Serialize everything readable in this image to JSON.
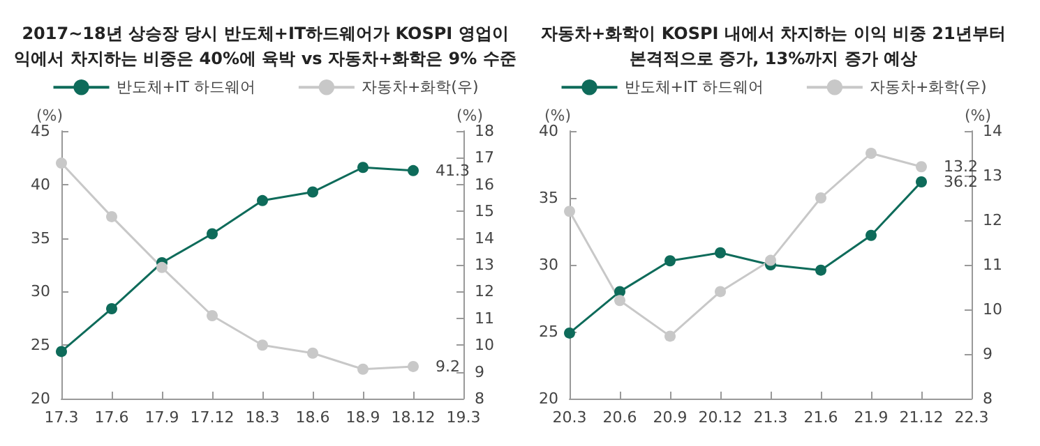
{
  "chart_data": [
    {
      "type": "line",
      "title": "2017~18년 상승장 당시 반도체+IT하드웨어가 KOSPI 영업이\n익에서 차지하는 비중은 40%에 육박 vs 자동차+화학은 9% 수준",
      "categories": [
        "17.3",
        "17.6",
        "17.9",
        "17.12",
        "18.3",
        "18.6",
        "18.9",
        "18.12",
        "19.3"
      ],
      "ylabel": "(%)",
      "y2label": "(%)",
      "ylim": [
        20,
        45
      ],
      "yticks": [
        20,
        25,
        30,
        35,
        40,
        45
      ],
      "y2lim": [
        8,
        18
      ],
      "y2ticks": [
        8,
        9,
        10,
        11,
        12,
        13,
        14,
        15,
        16,
        17,
        18
      ],
      "legend": "top",
      "grid": false,
      "marker": "circle",
      "series": [
        {
          "name": "반도체+IT 하드웨어",
          "color": "#0e6b5a",
          "values": [
            24.4,
            28.4,
            32.7,
            35.4,
            38.5,
            39.3,
            41.6,
            41.3,
            null
          ],
          "value_labels": [
            null,
            null,
            null,
            null,
            null,
            null,
            null,
            "41.3",
            null
          ]
        },
        {
          "name": "자동차+화학(우)",
          "color": "#c8c8c8",
          "axis": "y2",
          "values": [
            16.8,
            14.8,
            12.9,
            11.1,
            10.0,
            9.7,
            9.1,
            9.2,
            null
          ],
          "value_labels": [
            null,
            null,
            null,
            null,
            null,
            null,
            null,
            "9.2",
            null
          ]
        }
      ]
    },
    {
      "type": "line",
      "title": "자동차+화학이 KOSPI 내에서 차지하는 이익 비중 21년부터\n본격적으로 증가, 13%까지 증가 예상",
      "categories": [
        "20.3",
        "20.6",
        "20.9",
        "20.12",
        "21.3",
        "21.6",
        "21.9",
        "21.12",
        "22.3"
      ],
      "ylabel": "(%)",
      "y2label": "(%)",
      "ylim": [
        20,
        40
      ],
      "yticks": [
        20,
        25,
        30,
        35,
        40
      ],
      "y2lim": [
        8,
        14
      ],
      "y2ticks": [
        8,
        9,
        10,
        11,
        12,
        13,
        14
      ],
      "legend": "top",
      "grid": false,
      "marker": "circle",
      "series": [
        {
          "name": "반도체+IT 하드웨어",
          "color": "#0e6b5a",
          "values": [
            24.9,
            28.0,
            30.3,
            30.9,
            30.0,
            29.6,
            32.2,
            36.2,
            null
          ],
          "value_labels": [
            null,
            null,
            null,
            null,
            null,
            null,
            null,
            "36.2",
            null
          ]
        },
        {
          "name": "자동차+화학(우)",
          "color": "#c8c8c8",
          "axis": "y2",
          "values": [
            12.2,
            10.2,
            9.4,
            10.4,
            11.1,
            12.5,
            13.5,
            13.2,
            null
          ],
          "value_labels": [
            null,
            null,
            null,
            null,
            null,
            null,
            null,
            "13.2",
            null
          ]
        }
      ]
    }
  ]
}
